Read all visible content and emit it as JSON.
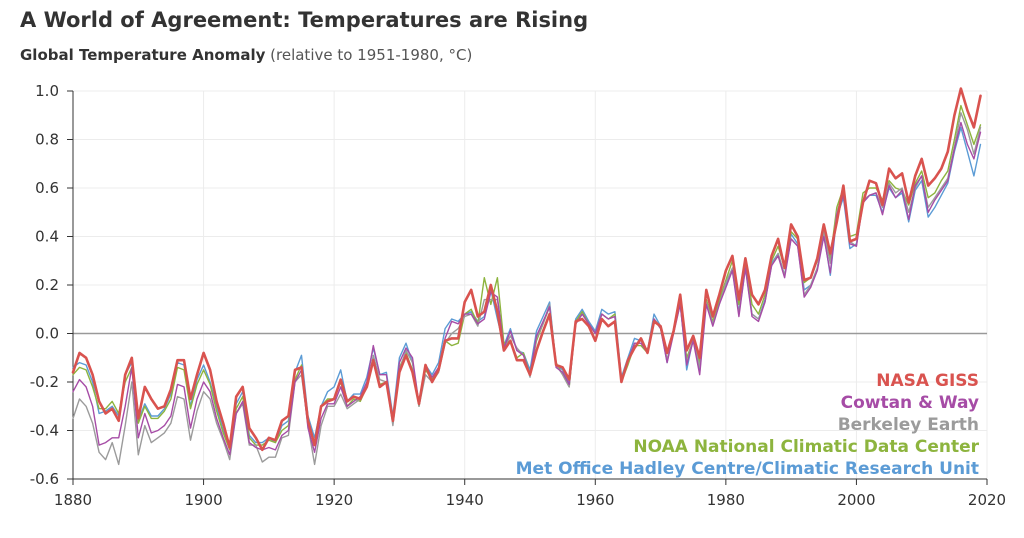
{
  "header": {
    "title": "A World of Agreement: Temperatures are Rising",
    "subtitle_main": "Global Temperature Anomaly",
    "subtitle_note": "(relative to 1951-1980, °C)"
  },
  "chart_data": {
    "type": "line",
    "title": "A World of Agreement: Temperatures are Rising",
    "subtitle": "Global Temperature Anomaly (relative to 1951-1980, °C)",
    "xlabel": "",
    "ylabel": "",
    "xlim": [
      1880,
      2020
    ],
    "ylim": [
      -0.6,
      1.0
    ],
    "x_ticks": [
      "1880",
      "1900",
      "1920",
      "1940",
      "1960",
      "1980",
      "2000",
      "2020"
    ],
    "y_ticks": [
      "1.0",
      "0.8",
      "0.6",
      "0.4",
      "0.2",
      "0.0",
      "-0.2",
      "-0.4",
      "-0.6"
    ],
    "grid": true,
    "legend_position": "bottom-right",
    "x": [
      1880,
      1881,
      1882,
      1883,
      1884,
      1885,
      1886,
      1887,
      1888,
      1889,
      1890,
      1891,
      1892,
      1893,
      1894,
      1895,
      1896,
      1897,
      1898,
      1899,
      1900,
      1901,
      1902,
      1903,
      1904,
      1905,
      1906,
      1907,
      1908,
      1909,
      1910,
      1911,
      1912,
      1913,
      1914,
      1915,
      1916,
      1917,
      1918,
      1919,
      1920,
      1921,
      1922,
      1923,
      1924,
      1925,
      1926,
      1927,
      1928,
      1929,
      1930,
      1931,
      1932,
      1933,
      1934,
      1935,
      1936,
      1937,
      1938,
      1939,
      1940,
      1941,
      1942,
      1943,
      1944,
      1945,
      1946,
      1947,
      1948,
      1949,
      1950,
      1951,
      1952,
      1953,
      1954,
      1955,
      1956,
      1957,
      1958,
      1959,
      1960,
      1961,
      1962,
      1963,
      1964,
      1965,
      1966,
      1967,
      1968,
      1969,
      1970,
      1971,
      1972,
      1973,
      1974,
      1975,
      1976,
      1977,
      1978,
      1979,
      1980,
      1981,
      1982,
      1983,
      1984,
      1985,
      1986,
      1987,
      1988,
      1989,
      1990,
      1991,
      1992,
      1993,
      1994,
      1995,
      1996,
      1997,
      1998,
      1999,
      2000,
      2001,
      2002,
      2003,
      2004,
      2005,
      2006,
      2007,
      2008,
      2009,
      2010,
      2011,
      2012,
      2013,
      2014,
      2015,
      2016,
      2017,
      2018,
      2019
    ],
    "series": [
      {
        "name": "Met Office Hadley Centre/Climatic Research Unit",
        "color": "#5b9bd5",
        "values": [
          -0.14,
          -0.12,
          -0.13,
          -0.2,
          -0.33,
          -0.32,
          -0.3,
          -0.34,
          -0.17,
          -0.12,
          -0.36,
          -0.29,
          -0.34,
          -0.34,
          -0.31,
          -0.25,
          -0.12,
          -0.13,
          -0.3,
          -0.19,
          -0.13,
          -0.2,
          -0.3,
          -0.4,
          -0.47,
          -0.29,
          -0.24,
          -0.42,
          -0.45,
          -0.45,
          -0.43,
          -0.45,
          -0.38,
          -0.36,
          -0.16,
          -0.09,
          -0.34,
          -0.43,
          -0.3,
          -0.24,
          -0.22,
          -0.15,
          -0.28,
          -0.25,
          -0.25,
          -0.18,
          -0.06,
          -0.17,
          -0.16,
          -0.34,
          -0.1,
          -0.04,
          -0.12,
          -0.29,
          -0.13,
          -0.17,
          -0.12,
          0.02,
          0.06,
          0.05,
          0.08,
          0.09,
          0.05,
          0.07,
          0.18,
          0.06,
          -0.05,
          0.02,
          -0.07,
          -0.08,
          -0.15,
          0.01,
          0.07,
          0.13,
          -0.13,
          -0.15,
          -0.2,
          0.06,
          0.1,
          0.05,
          0.01,
          0.1,
          0.08,
          0.09,
          -0.18,
          -0.1,
          -0.02,
          -0.03,
          -0.07,
          0.08,
          0.03,
          -0.12,
          0.02,
          0.13,
          -0.15,
          -0.02,
          -0.16,
          0.14,
          0.04,
          0.13,
          0.2,
          0.26,
          0.09,
          0.28,
          0.08,
          0.06,
          0.14,
          0.29,
          0.33,
          0.24,
          0.41,
          0.37,
          0.18,
          0.2,
          0.27,
          0.41,
          0.24,
          0.48,
          0.56,
          0.35,
          0.37,
          0.54,
          0.57,
          0.57,
          0.5,
          0.6,
          0.56,
          0.58,
          0.46,
          0.59,
          0.63,
          0.48,
          0.52,
          0.57,
          0.62,
          0.75,
          0.85,
          0.75,
          0.65,
          0.78
        ]
      },
      {
        "name": "NOAA National Climatic Data Center",
        "color": "#8db43e",
        "values": [
          -0.17,
          -0.14,
          -0.15,
          -0.22,
          -0.31,
          -0.31,
          -0.28,
          -0.33,
          -0.2,
          -0.14,
          -0.37,
          -0.3,
          -0.35,
          -0.35,
          -0.32,
          -0.27,
          -0.14,
          -0.15,
          -0.31,
          -0.21,
          -0.15,
          -0.21,
          -0.32,
          -0.41,
          -0.48,
          -0.31,
          -0.26,
          -0.43,
          -0.46,
          -0.46,
          -0.44,
          -0.45,
          -0.4,
          -0.38,
          -0.19,
          -0.13,
          -0.37,
          -0.45,
          -0.3,
          -0.27,
          -0.27,
          -0.2,
          -0.3,
          -0.27,
          -0.28,
          -0.22,
          -0.1,
          -0.21,
          -0.2,
          -0.35,
          -0.14,
          -0.08,
          -0.15,
          -0.3,
          -0.15,
          -0.19,
          -0.14,
          -0.03,
          -0.05,
          -0.04,
          0.08,
          0.1,
          0.04,
          0.23,
          0.12,
          0.23,
          -0.04,
          -0.03,
          -0.1,
          -0.08,
          -0.17,
          -0.03,
          0.04,
          0.11,
          -0.12,
          -0.17,
          -0.22,
          0.05,
          0.09,
          0.04,
          0.0,
          0.08,
          0.06,
          0.08,
          -0.2,
          -0.13,
          -0.05,
          -0.05,
          -0.08,
          0.06,
          0.02,
          -0.11,
          0.01,
          0.13,
          -0.1,
          -0.03,
          -0.12,
          0.14,
          0.05,
          0.14,
          0.22,
          0.3,
          0.12,
          0.29,
          0.12,
          0.08,
          0.16,
          0.3,
          0.36,
          0.27,
          0.42,
          0.39,
          0.21,
          0.23,
          0.3,
          0.43,
          0.31,
          0.52,
          0.6,
          0.4,
          0.41,
          0.58,
          0.6,
          0.6,
          0.55,
          0.63,
          0.6,
          0.59,
          0.53,
          0.62,
          0.67,
          0.56,
          0.58,
          0.63,
          0.67,
          0.8,
          0.94,
          0.86,
          0.78,
          0.86
        ]
      },
      {
        "name": "Berkeley Earth",
        "color": "#9b9b9b",
        "values": [
          -0.35,
          -0.27,
          -0.3,
          -0.37,
          -0.49,
          -0.52,
          -0.45,
          -0.54,
          -0.38,
          -0.2,
          -0.5,
          -0.38,
          -0.45,
          -0.43,
          -0.41,
          -0.37,
          -0.26,
          -0.27,
          -0.44,
          -0.32,
          -0.24,
          -0.27,
          -0.37,
          -0.44,
          -0.52,
          -0.33,
          -0.29,
          -0.46,
          -0.46,
          -0.53,
          -0.51,
          -0.51,
          -0.43,
          -0.42,
          -0.2,
          -0.17,
          -0.38,
          -0.54,
          -0.38,
          -0.3,
          -0.3,
          -0.25,
          -0.31,
          -0.29,
          -0.27,
          -0.22,
          -0.09,
          -0.19,
          -0.2,
          -0.38,
          -0.15,
          -0.07,
          -0.12,
          -0.3,
          -0.17,
          -0.2,
          -0.16,
          -0.04,
          0.0,
          0.02,
          0.07,
          0.08,
          0.03,
          0.14,
          0.14,
          0.14,
          -0.06,
          -0.01,
          -0.06,
          -0.09,
          -0.18,
          -0.02,
          0.04,
          0.12,
          -0.13,
          -0.17,
          -0.22,
          0.04,
          0.08,
          0.04,
          0.0,
          0.08,
          0.06,
          0.07,
          -0.19,
          -0.12,
          -0.04,
          -0.04,
          -0.07,
          0.06,
          0.03,
          -0.11,
          0.01,
          0.12,
          -0.12,
          -0.02,
          -0.14,
          0.13,
          0.04,
          0.12,
          0.21,
          0.27,
          0.08,
          0.27,
          0.08,
          0.06,
          0.13,
          0.28,
          0.33,
          0.24,
          0.39,
          0.36,
          0.16,
          0.2,
          0.27,
          0.42,
          0.29,
          0.5,
          0.58,
          0.38,
          0.36,
          0.55,
          0.57,
          0.58,
          0.52,
          0.62,
          0.58,
          0.6,
          0.5,
          0.6,
          0.65,
          0.52,
          0.56,
          0.6,
          0.64,
          0.77,
          0.91,
          0.84,
          0.74,
          0.85
        ]
      },
      {
        "name": "Cowtan & Way",
        "color": "#a64ca6",
        "values": [
          -0.24,
          -0.19,
          -0.22,
          -0.3,
          -0.46,
          -0.45,
          -0.43,
          -0.43,
          -0.3,
          -0.14,
          -0.43,
          -0.33,
          -0.41,
          -0.4,
          -0.38,
          -0.34,
          -0.21,
          -0.22,
          -0.39,
          -0.27,
          -0.2,
          -0.24,
          -0.35,
          -0.43,
          -0.5,
          -0.33,
          -0.28,
          -0.45,
          -0.47,
          -0.48,
          -0.47,
          -0.48,
          -0.42,
          -0.4,
          -0.2,
          -0.15,
          -0.39,
          -0.49,
          -0.35,
          -0.29,
          -0.29,
          -0.22,
          -0.3,
          -0.28,
          -0.26,
          -0.2,
          -0.05,
          -0.17,
          -0.17,
          -0.36,
          -0.12,
          -0.06,
          -0.1,
          -0.29,
          -0.14,
          -0.18,
          -0.14,
          -0.02,
          0.05,
          0.04,
          0.08,
          0.08,
          0.04,
          0.06,
          0.17,
          0.15,
          -0.06,
          0.01,
          -0.07,
          -0.09,
          -0.17,
          -0.01,
          0.05,
          0.11,
          -0.14,
          -0.16,
          -0.21,
          0.04,
          0.08,
          0.04,
          0.0,
          0.08,
          0.06,
          0.07,
          -0.2,
          -0.11,
          -0.04,
          -0.04,
          -0.08,
          0.06,
          0.02,
          -0.12,
          0.0,
          0.12,
          -0.13,
          -0.03,
          -0.17,
          0.12,
          0.03,
          0.12,
          0.19,
          0.26,
          0.07,
          0.27,
          0.07,
          0.05,
          0.13,
          0.28,
          0.32,
          0.23,
          0.39,
          0.36,
          0.15,
          0.19,
          0.26,
          0.4,
          0.25,
          0.49,
          0.57,
          0.37,
          0.36,
          0.54,
          0.57,
          0.58,
          0.49,
          0.61,
          0.56,
          0.59,
          0.47,
          0.61,
          0.65,
          0.5,
          0.55,
          0.59,
          0.63,
          0.76,
          0.87,
          0.78,
          0.72,
          0.83
        ]
      },
      {
        "name": "NASA GISS",
        "color": "#d9534f",
        "values": [
          -0.16,
          -0.08,
          -0.1,
          -0.17,
          -0.28,
          -0.33,
          -0.31,
          -0.36,
          -0.17,
          -0.1,
          -0.35,
          -0.22,
          -0.27,
          -0.31,
          -0.3,
          -0.23,
          -0.11,
          -0.11,
          -0.27,
          -0.17,
          -0.08,
          -0.15,
          -0.28,
          -0.37,
          -0.47,
          -0.26,
          -0.22,
          -0.39,
          -0.43,
          -0.48,
          -0.43,
          -0.44,
          -0.36,
          -0.34,
          -0.15,
          -0.14,
          -0.36,
          -0.46,
          -0.3,
          -0.28,
          -0.27,
          -0.19,
          -0.28,
          -0.26,
          -0.27,
          -0.22,
          -0.11,
          -0.22,
          -0.2,
          -0.36,
          -0.16,
          -0.09,
          -0.16,
          -0.29,
          -0.13,
          -0.2,
          -0.15,
          -0.03,
          -0.02,
          -0.02,
          0.13,
          0.18,
          0.07,
          0.09,
          0.2,
          0.09,
          -0.07,
          -0.03,
          -0.11,
          -0.11,
          -0.17,
          -0.07,
          0.01,
          0.08,
          -0.13,
          -0.14,
          -0.19,
          0.05,
          0.06,
          0.03,
          -0.03,
          0.06,
          0.03,
          0.05,
          -0.2,
          -0.11,
          -0.06,
          -0.02,
          -0.08,
          0.05,
          0.03,
          -0.08,
          0.01,
          0.16,
          -0.07,
          -0.01,
          -0.1,
          0.18,
          0.07,
          0.16,
          0.26,
          0.32,
          0.14,
          0.31,
          0.16,
          0.12,
          0.18,
          0.32,
          0.39,
          0.27,
          0.45,
          0.4,
          0.22,
          0.23,
          0.31,
          0.45,
          0.33,
          0.46,
          0.61,
          0.38,
          0.39,
          0.54,
          0.63,
          0.62,
          0.53,
          0.68,
          0.64,
          0.66,
          0.54,
          0.65,
          0.72,
          0.61,
          0.64,
          0.68,
          0.75,
          0.9,
          1.01,
          0.92,
          0.85,
          0.98
        ]
      }
    ]
  }
}
